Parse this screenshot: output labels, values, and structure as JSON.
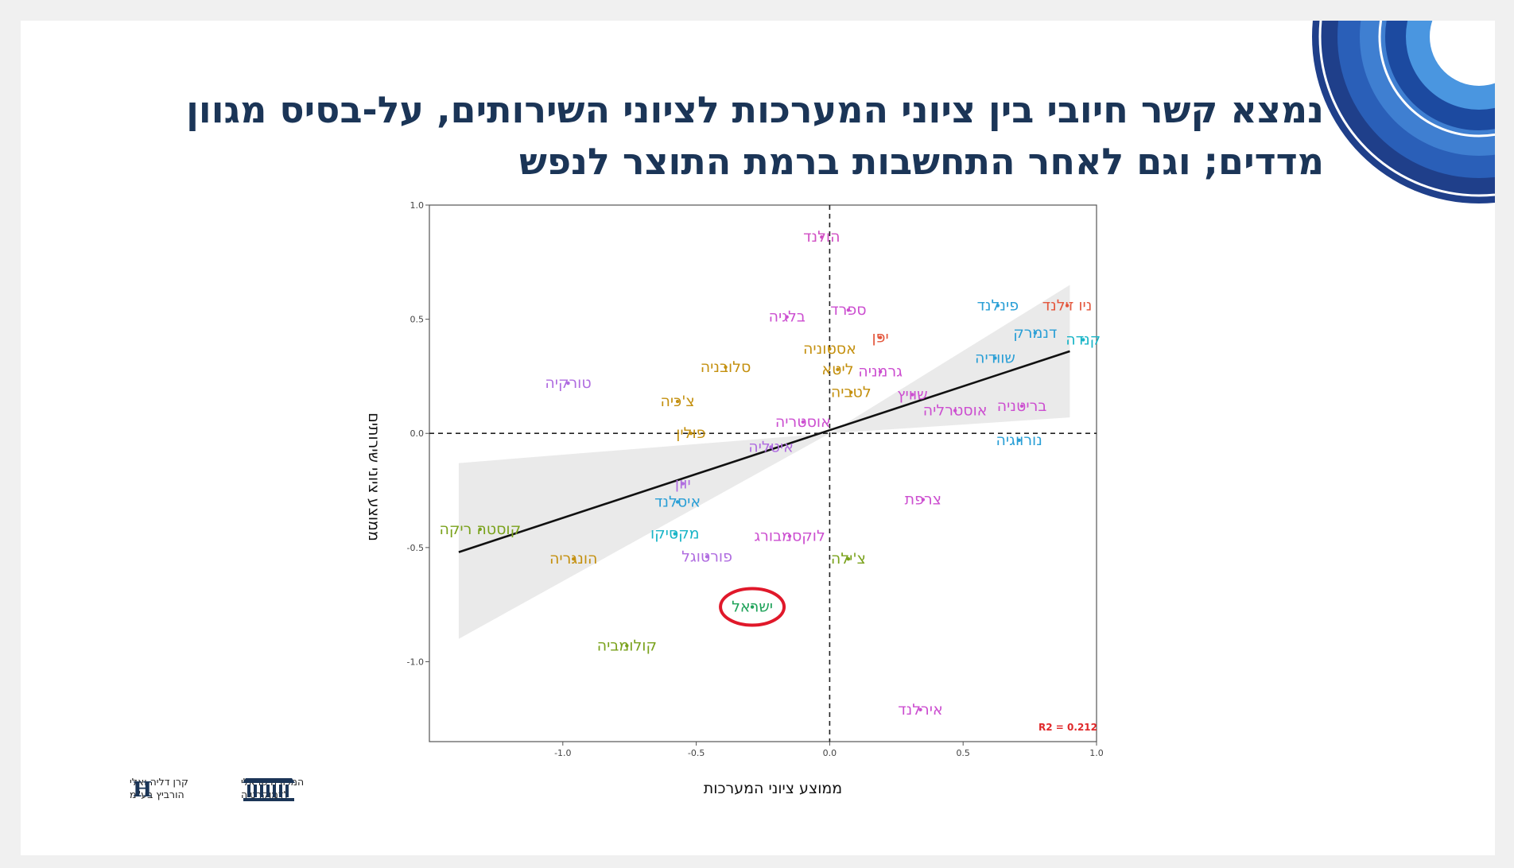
{
  "slide": {
    "title_line1": "נמצא קשר חיובי בין ציוני המערכות לציוני השירותים, על-בסיס מגוון",
    "title_line2": "מדדים; וגם לאחר התחשבות ברמת התוצר לנפש"
  },
  "logos": {
    "left_logo_line1": "קרן דליה ואלי",
    "left_logo_line2": "הורביץ בע\"מ",
    "left_logo_mark": "H",
    "right_logo_line1": "המכון הישראלי",
    "right_logo_line2": "לדמוקרטיה"
  },
  "chart_data": {
    "type": "scatter",
    "xlabel": "ממוצע ציוני המערכות",
    "ylabel": "ממוצע ציוני שירותים",
    "xlim": [
      -1.5,
      1.0
    ],
    "ylim": [
      -1.35,
      1.0
    ],
    "xticks": [
      "-1.0",
      "-0.5",
      "0.0",
      "0.5",
      "1.0"
    ],
    "yticks": [
      "-1.0",
      "-0.5",
      "0.0",
      "0.5",
      "1.0"
    ],
    "annotation": "R2 = 0.212",
    "highlight": "ישראל",
    "regression": {
      "x": [
        -1.39,
        0.9
      ],
      "y": [
        -0.52,
        0.36
      ]
    },
    "band_upper": [
      [
        -1.39,
        -0.13
      ],
      [
        0.0,
        0.0
      ],
      [
        0.9,
        0.65
      ]
    ],
    "band_lower": [
      [
        -1.39,
        -0.9
      ],
      [
        0.0,
        0.0
      ],
      [
        0.9,
        0.07
      ]
    ],
    "points": [
      {
        "label": "הולנד",
        "x": -0.03,
        "y": 0.86,
        "color": "#d14fc4"
      },
      {
        "label": "פינלנד",
        "x": 0.63,
        "y": 0.56,
        "color": "#2a9fd6"
      },
      {
        "label": "ניו זילנד",
        "x": 0.89,
        "y": 0.56,
        "color": "#e4573d"
      },
      {
        "label": "דנמרק",
        "x": 0.77,
        "y": 0.44,
        "color": "#2a9fd6"
      },
      {
        "label": "קנדה",
        "x": 0.95,
        "y": 0.41,
        "color": "#19b5c7"
      },
      {
        "label": "ספרד",
        "x": 0.07,
        "y": 0.54,
        "color": "#cc4fd0"
      },
      {
        "label": "בלגיה",
        "x": -0.16,
        "y": 0.51,
        "color": "#cc4fd0"
      },
      {
        "label": "יפן",
        "x": 0.19,
        "y": 0.42,
        "color": "#e4573d"
      },
      {
        "label": "אסטוניה",
        "x": 0.0,
        "y": 0.37,
        "color": "#c4900f"
      },
      {
        "label": "שוודיה",
        "x": 0.62,
        "y": 0.33,
        "color": "#2a9fd6"
      },
      {
        "label": "סלובניה",
        "x": -0.39,
        "y": 0.29,
        "color": "#c4900f"
      },
      {
        "label": "ליטא",
        "x": 0.03,
        "y": 0.28,
        "color": "#c4900f"
      },
      {
        "label": "גרמניה",
        "x": 0.19,
        "y": 0.27,
        "color": "#cc4fd0"
      },
      {
        "label": "טורקיה",
        "x": -0.98,
        "y": 0.22,
        "color": "#b06de0"
      },
      {
        "label": "לטביה",
        "x": 0.08,
        "y": 0.18,
        "color": "#c4900f"
      },
      {
        "label": "שוויץ",
        "x": 0.31,
        "y": 0.17,
        "color": "#cc4fd0"
      },
      {
        "label": "צ'כיה",
        "x": -0.57,
        "y": 0.14,
        "color": "#c4900f"
      },
      {
        "label": "אוסטרליה",
        "x": 0.47,
        "y": 0.1,
        "color": "#cc4fd0"
      },
      {
        "label": "בריטניה",
        "x": 0.72,
        "y": 0.12,
        "color": "#cc4fd0"
      },
      {
        "label": "אוסטריה",
        "x": -0.1,
        "y": 0.05,
        "color": "#cc4fd0"
      },
      {
        "label": "פולין",
        "x": -0.52,
        "y": 0.0,
        "color": "#c4900f"
      },
      {
        "label": "נורווגיה",
        "x": 0.71,
        "y": -0.03,
        "color": "#2a9fd6"
      },
      {
        "label": "איטליה",
        "x": -0.22,
        "y": -0.06,
        "color": "#b06de0"
      },
      {
        "label": "יוון",
        "x": -0.55,
        "y": -0.22,
        "color": "#b06de0"
      },
      {
        "label": "איסלנד",
        "x": -0.57,
        "y": -0.3,
        "color": "#2a9fd6"
      },
      {
        "label": "צרפת",
        "x": 0.35,
        "y": -0.29,
        "color": "#cc4fd0"
      },
      {
        "label": "קוסטה ריקה",
        "x": -1.31,
        "y": -0.42,
        "color": "#7aa21c"
      },
      {
        "label": "מקסיקו",
        "x": -0.58,
        "y": -0.44,
        "color": "#19b5c7"
      },
      {
        "label": "לוקסמבורג",
        "x": -0.15,
        "y": -0.45,
        "color": "#cc4fd0"
      },
      {
        "label": "צ'ילה",
        "x": 0.07,
        "y": -0.55,
        "color": "#7aa21c"
      },
      {
        "label": "פורטוגל",
        "x": -0.46,
        "y": -0.54,
        "color": "#b06de0"
      },
      {
        "label": "הונגריה",
        "x": -0.96,
        "y": -0.55,
        "color": "#c4900f"
      },
      {
        "label": "ישראל",
        "x": -0.29,
        "y": -0.76,
        "color": "#1fa35a"
      },
      {
        "label": "קולומביה",
        "x": -0.76,
        "y": -0.93,
        "color": "#7aa21c"
      },
      {
        "label": "אירלנד",
        "x": 0.34,
        "y": -1.21,
        "color": "#cc4fd0"
      }
    ]
  }
}
